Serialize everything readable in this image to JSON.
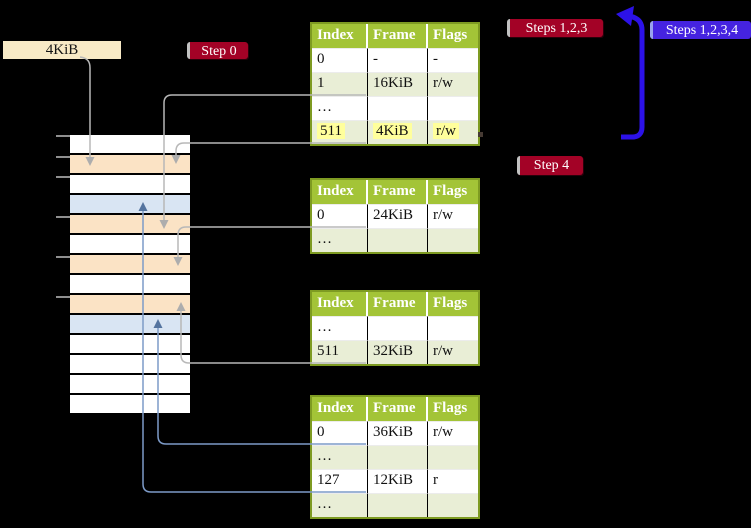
{
  "labels": {
    "page_box": "4KiB",
    "step0": "Step 0",
    "steps123": "Steps 1,2,3",
    "steps1234": "Steps 1,2,3,4",
    "step4": "Step 4"
  },
  "tables": [
    {
      "name": "page-table-level-1",
      "headers": [
        "Index",
        "Frame",
        "Flags"
      ],
      "rows": [
        {
          "cells": [
            "0",
            "-",
            "-"
          ],
          "shaded": false,
          "highlight": false
        },
        {
          "cells": [
            "1",
            "16KiB",
            "r/w"
          ],
          "shaded": true,
          "highlight": false
        },
        {
          "cells": [
            "…",
            "",
            ""
          ],
          "shaded": false,
          "highlight": false
        },
        {
          "cells": [
            "511",
            "4KiB",
            "r/w"
          ],
          "shaded": true,
          "highlight": true
        }
      ]
    },
    {
      "name": "page-table-level-2",
      "headers": [
        "Index",
        "Frame",
        "Flags"
      ],
      "rows": [
        {
          "cells": [
            "0",
            "24KiB",
            "r/w"
          ],
          "shaded": false,
          "highlight": false
        },
        {
          "cells": [
            "…",
            "",
            ""
          ],
          "shaded": true,
          "highlight": false
        }
      ]
    },
    {
      "name": "page-table-level-3",
      "headers": [
        "Index",
        "Frame",
        "Flags"
      ],
      "rows": [
        {
          "cells": [
            "…",
            "",
            ""
          ],
          "shaded": false,
          "highlight": false
        },
        {
          "cells": [
            "511",
            "32KiB",
            "r/w"
          ],
          "shaded": true,
          "highlight": false
        }
      ]
    },
    {
      "name": "page-table-level-4",
      "headers": [
        "Index",
        "Frame",
        "Flags"
      ],
      "rows": [
        {
          "cells": [
            "0",
            "36KiB",
            "r/w"
          ],
          "shaded": false,
          "highlight": false
        },
        {
          "cells": [
            "…",
            "",
            ""
          ],
          "shaded": true,
          "highlight": false
        },
        {
          "cells": [
            "127",
            "12KiB",
            "r"
          ],
          "shaded": false,
          "highlight": false
        },
        {
          "cells": [
            "…",
            "",
            ""
          ],
          "shaded": true,
          "highlight": false
        }
      ]
    }
  ],
  "memory_column": {
    "rows": [
      "white",
      "orange",
      "white",
      "blue",
      "orange",
      "white",
      "orange",
      "white",
      "orange",
      "blue",
      "white",
      "white",
      "white",
      "white"
    ]
  },
  "colors": {
    "header_green": "#a3c437",
    "row_green": "#e9eed6",
    "table_border": "#7e9b22",
    "orange_row": "#fbe3c5",
    "blue_row": "#d9e5f3",
    "highlight": "#ffff9c",
    "red_label": "#a30226",
    "blue_label": "#4523e0",
    "page_box_bg": "#f8eac6",
    "gray_line": "#b8b8b8",
    "blue_line": "#7d9bc8",
    "big_arrow": "#2c12e8"
  }
}
